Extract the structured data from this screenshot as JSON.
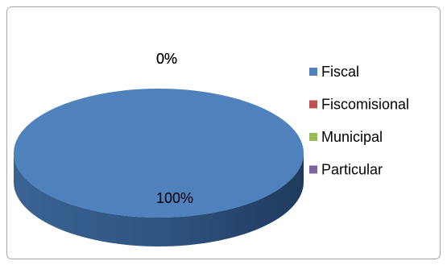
{
  "chart_data": {
    "type": "pie",
    "categories": [
      "Fiscal",
      "Fiscomisional",
      "Municipal",
      "Particular"
    ],
    "values": [
      100,
      0,
      0,
      0
    ],
    "value_labels": [
      "100%",
      "0%",
      "0%",
      "0%"
    ],
    "colors": [
      "#4f81bd",
      "#c0504d",
      "#9bbb59",
      "#8064a2"
    ],
    "legend": "right"
  }
}
